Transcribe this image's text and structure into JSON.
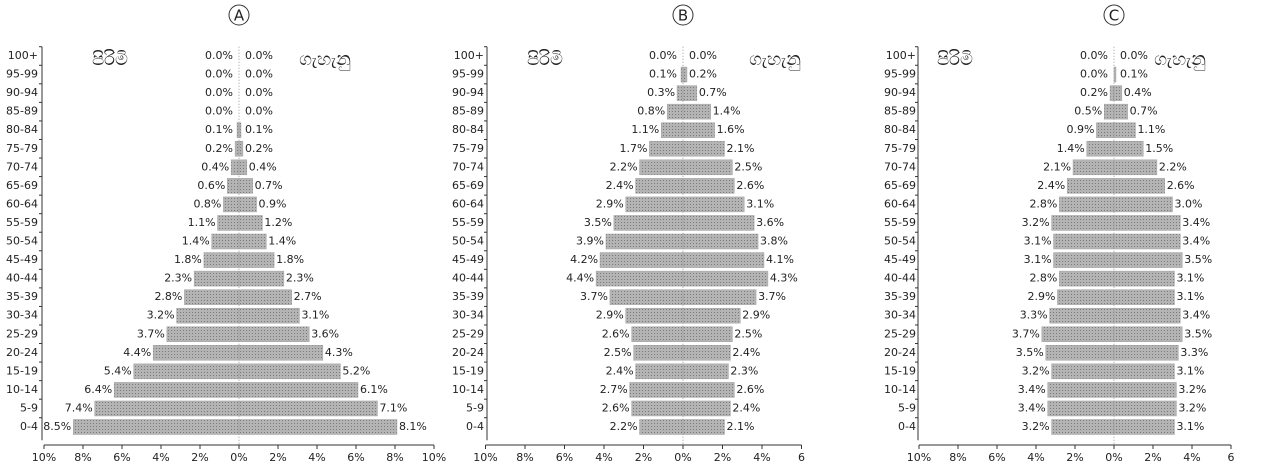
{
  "chart_data": [
    {
      "type": "pyramid",
      "title": "A",
      "categories": [
        "100+",
        "95-99",
        "90-94",
        "85-89",
        "80-84",
        "75-79",
        "70-74",
        "65-69",
        "60-64",
        "55-59",
        "50-54",
        "45-49",
        "40-44",
        "35-39",
        "30-34",
        "25-29",
        "20-24",
        "15-19",
        "10-14",
        "5-9",
        "0-4"
      ],
      "series": [
        {
          "name": "පිරිමි",
          "side": "left",
          "color": "#a3a3a3",
          "values": [
            0.0,
            0.0,
            0.0,
            0.0,
            0.1,
            0.2,
            0.4,
            0.6,
            0.8,
            1.1,
            1.4,
            1.8,
            2.3,
            2.8,
            3.2,
            3.7,
            4.4,
            5.4,
            6.4,
            7.4,
            8.5
          ],
          "value_labels": [
            "0.0%",
            "0.0%",
            "0.0%",
            "0.0%",
            "0.1%",
            "0.2%",
            "0.4%",
            "0.6%",
            "0.8%",
            "1.1%",
            "1.4%",
            "1.8%",
            "2.3%",
            "2.8%",
            "3.2%",
            "3.7%",
            "4.4%",
            "5.4%",
            "6.4%",
            "7.4%",
            "8.5%"
          ]
        },
        {
          "name": "ගැහැනු",
          "side": "right",
          "color": "#a3a3a3",
          "values": [
            0.0,
            0.0,
            0.0,
            0.0,
            0.1,
            0.2,
            0.4,
            0.7,
            0.9,
            1.2,
            1.4,
            1.8,
            2.3,
            2.7,
            3.1,
            3.6,
            4.3,
            5.2,
            6.1,
            7.1,
            8.1
          ],
          "value_labels": [
            "0.0%",
            "0.0%",
            "0.0%",
            "0.0%",
            "0.1%",
            "0.2%",
            "0.4%",
            "0.7%",
            "0.9%",
            "1.2%",
            "1.4%",
            "1.8%",
            "2.3%",
            "2.7%",
            "3.1%",
            "3.6%",
            "4.3%",
            "5.2%",
            "6.1%",
            "7.1%",
            "8.1%"
          ]
        }
      ],
      "xlim_left": [
        10,
        0
      ],
      "xlim_right": [
        0,
        10
      ],
      "xticks_left": [
        {
          "value": 10,
          "label": "10%"
        },
        {
          "value": 8,
          "label": "8%"
        },
        {
          "value": 6,
          "label": "6%"
        },
        {
          "value": 4,
          "label": "4%"
        },
        {
          "value": 2,
          "label": "2%"
        }
      ],
      "xticks_right": [
        {
          "value": 0,
          "label": "0%"
        },
        {
          "value": 2,
          "label": "2%"
        },
        {
          "value": 4,
          "label": "4%"
        },
        {
          "value": 6,
          "label": "6%"
        },
        {
          "value": 8,
          "label": "8%"
        },
        {
          "value": 10,
          "label": "10%"
        }
      ]
    },
    {
      "type": "pyramid",
      "title": "B",
      "categories": [
        "100+",
        "95-99",
        "90-94",
        "85-89",
        "80-84",
        "75-79",
        "70-74",
        "65-69",
        "60-64",
        "55-59",
        "50-54",
        "45-49",
        "40-44",
        "35-39",
        "30-34",
        "25-29",
        "20-24",
        "15-19",
        "10-14",
        "5-9",
        "0-4"
      ],
      "series": [
        {
          "name": "පිරිමි",
          "side": "left",
          "color": "#a3a3a3",
          "values": [
            0.0,
            0.1,
            0.3,
            0.8,
            1.1,
            1.7,
            2.2,
            2.4,
            2.9,
            3.5,
            3.9,
            4.2,
            4.4,
            3.7,
            2.9,
            2.6,
            2.5,
            2.4,
            2.7,
            2.6,
            2.2
          ],
          "value_labels": [
            "0.0%",
            "0.1%",
            "0.3%",
            "0.8%",
            "1.1%",
            "1.7%",
            "2.2%",
            "2.4%",
            "2.9%",
            "3.5%",
            "3.9%",
            "4.2%",
            "4.4%",
            "3.7%",
            "2.9%",
            "2.6%",
            "2.5%",
            "2.4%",
            "2.7%",
            "2.6%",
            "2.2%"
          ]
        },
        {
          "name": "ගැහැනු",
          "side": "right",
          "color": "#a3a3a3",
          "values": [
            0.0,
            0.2,
            0.7,
            1.4,
            1.6,
            2.1,
            2.5,
            2.6,
            3.1,
            3.6,
            3.8,
            4.1,
            4.3,
            3.7,
            2.9,
            2.5,
            2.4,
            2.3,
            2.6,
            2.4,
            2.1
          ],
          "value_labels": [
            "0.0%",
            "0.2%",
            "0.7%",
            "1.4%",
            "1.6%",
            "2.1%",
            "2.5%",
            "2.6%",
            "3.1%",
            "3.6%",
            "3.8%",
            "4.1%",
            "4.3%",
            "3.7%",
            "2.9%",
            "2.5%",
            "2.4%",
            "2.3%",
            "2.6%",
            "2.4%",
            "2.1%"
          ]
        }
      ],
      "xlim_left": [
        10,
        0
      ],
      "xlim_right": [
        0,
        6
      ],
      "xticks_left": [
        {
          "value": 10,
          "label": "10%"
        },
        {
          "value": 8,
          "label": "8%"
        },
        {
          "value": 6,
          "label": "6%"
        },
        {
          "value": 4,
          "label": "4%"
        },
        {
          "value": 2,
          "label": "2%"
        }
      ],
      "xticks_right": [
        {
          "value": 0,
          "label": "0%"
        },
        {
          "value": 2,
          "label": "2%"
        },
        {
          "value": 4,
          "label": "4%"
        },
        {
          "value": 6,
          "label": "6"
        }
      ]
    },
    {
      "type": "pyramid",
      "title": "C",
      "categories": [
        "100+",
        "95-99",
        "90-94",
        "85-89",
        "80-84",
        "75-79",
        "70-74",
        "65-69",
        "60-64",
        "55-59",
        "50-54",
        "45-49",
        "40-44",
        "35-39",
        "30-34",
        "25-29",
        "20-24",
        "15-19",
        "10-14",
        "5-9",
        "0-4"
      ],
      "series": [
        {
          "name": "පිරිමි",
          "side": "left",
          "color": "#a3a3a3",
          "values": [
            0.0,
            0.0,
            0.2,
            0.5,
            0.9,
            1.4,
            2.1,
            2.4,
            2.8,
            3.2,
            3.1,
            3.1,
            2.8,
            2.9,
            3.3,
            3.7,
            3.5,
            3.2,
            3.4,
            3.4,
            3.2
          ],
          "value_labels": [
            "0.0%",
            "0.0%",
            "0.2%",
            "0.5%",
            "0.9%",
            "1.4%",
            "2.1%",
            "2.4%",
            "2.8%",
            "3.2%",
            "3.1%",
            "3.1%",
            "2.8%",
            "2.9%",
            "3.3%",
            "3.7%",
            "3.5%",
            "3.2%",
            "3.4%",
            "3.4%",
            "3.2%"
          ]
        },
        {
          "name": "ගැහැනු",
          "side": "right",
          "color": "#a3a3a3",
          "values": [
            0.0,
            0.1,
            0.4,
            0.7,
            1.1,
            1.5,
            2.2,
            2.6,
            3.0,
            3.4,
            3.4,
            3.5,
            3.1,
            3.1,
            3.4,
            3.5,
            3.3,
            3.1,
            3.2,
            3.2,
            3.1
          ],
          "value_labels": [
            "0.0%",
            "0.1%",
            "0.4%",
            "0.7%",
            "1.1%",
            "1.5%",
            "2.2%",
            "2.6%",
            "3.0%",
            "3.4%",
            "3.4%",
            "3.5%",
            "3.1%",
            "3.1%",
            "3.4%",
            "3.5%",
            "3.3%",
            "3.1%",
            "3.2%",
            "3.2%",
            "3.1%"
          ]
        }
      ],
      "xlim_left": [
        10,
        0
      ],
      "xlim_right": [
        0,
        6
      ],
      "xticks_left": [
        {
          "value": 10,
          "label": "10%"
        },
        {
          "value": 8,
          "label": "8%"
        },
        {
          "value": 6,
          "label": "6%"
        },
        {
          "value": 4,
          "label": "4%"
        },
        {
          "value": 2,
          "label": "2%"
        }
      ],
      "xticks_right": [
        {
          "value": 0,
          "label": "0%"
        },
        {
          "value": 2,
          "label": "2%"
        },
        {
          "value": 4,
          "label": "4%"
        },
        {
          "value": 6,
          "label": "6"
        }
      ]
    }
  ]
}
